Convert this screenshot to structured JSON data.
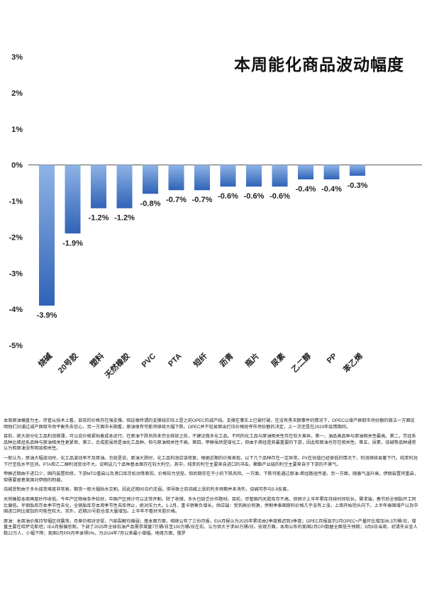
{
  "chart_data": {
    "type": "bar",
    "title": "本周能化商品波动幅度",
    "categories": [
      "烧碱",
      "20号胶",
      "塑料",
      "天然橡胶",
      "PVC",
      "PTA",
      "短纤",
      "沥青",
      "瓶片",
      "尿素",
      "乙二醇",
      "PP",
      "苯乙烯"
    ],
    "values": [
      -3.9,
      -1.9,
      -1.2,
      -1.2,
      -0.8,
      -0.7,
      -0.7,
      -0.6,
      -0.6,
      -0.6,
      -0.4,
      -0.4,
      -0.3
    ],
    "data_labels": [
      "-3.9%",
      "-1.9%",
      "-1.2%",
      "-1.2%",
      "-0.8%",
      "-0.7%",
      "-0.7%",
      "-0.6%",
      "-0.6%",
      "-0.6%",
      "-0.4%",
      "-0.4%",
      "-0.3%"
    ],
    "yticks": [
      3,
      2,
      1,
      0,
      -1,
      -2,
      -3,
      -4,
      -5
    ],
    "ytick_labels": [
      "3%",
      "2%",
      "1%",
      "0%",
      "-1%",
      "-2%",
      "-3%",
      "-4%",
      "-5%"
    ],
    "ylim": [
      -5,
      3
    ],
    "grid": false,
    "colors": {
      "bar_top": "#8fb3e6",
      "bar_bottom": "#2f63b7"
    }
  },
  "notes": [
    "本周原油横盘为主。尽管从技术上看，目前的价格存在强支撑。但这根所谓的支撑线实际上是之前OPEC的减产线。支撑在事实上已被打破，在没有黑天鹅事件的情况下，OPEC以增产换取市场份额的做法一方面说明他们对通过减产换取市场平衡失去信心，另一方面中长期看，原油很有可能将继续大幅下跌。OPEC并不轻易倒出打压价格抢夺市场份额的决定，上一次还是在2020年疫情期间。",
    "目前，绝大部分化工品利润微薄，可以说价格紧贴着成本运行。在原油下跌风险未完全释放之前，不建议做多化工品。不同的化工品与原油相关性存在较大差异。第一，油品类品种与原油相关性最高。第二，芳烃系品种比烯烃系品种与原油相关性更紧密。第三，合成胶虽然是油化工品种，但与原油相关性不高。第四，甲醇虽然是煤化工，但由于烯烃是其最重要的下游，因此和原油也存在相关性。第五，尿素，烧碱等品种通常认为和原油没有明显相关性。",
    "一般认为，原油大幅波动时，化工品波动率不及原油。也就是说，原油大跌时，化工品利润应该修复。根据近期的价格表现，以下几个品种存在一定异常。PX在估值已经很低的情况下，利润继续显著下行。纯苯利润下行至低水平区间。PTA和乙二醇利润变动不大。说明这几个品种基本面存在较大利空。其中，纯苯的利空主要来自进口的冲击。聚酯产业链的利空主要来自于下游的不景气。",
    "甲醇近期由于进口少，国内装置检修，下游MTO重启以及港口库存松动等原因，价格较为坚挺。但后期存在不小的下跌风险。一方面，下跌可能通过原油-烯烃路径传递。另一方面，随着气温升高，伊朗装置将重启，但需要留意美国对伊朗的制裁。",
    "烧碱受制由于多头接货难度非常高，期货一般大幅贴水交割。因此近期05合约走弱。但导致之前烧碱上涨的利多预期并未消失，烧碱可参与5-9反套。",
    "天然橡胶本周再度抄作收低。今年产区物候条件较好，中国产区预计可以正常开割。除了收储，多头已缺乏炒作题材。目前，尽管国内天胶库存不高，但预计上半年累库持续时间较长。需求端，春节后全钢胎开工同比偏低。半钢胎库存本季节性去化，全钢胎库存本周季节性去库停止，绝对压力大。1-2月，重卡销售负增长。供应端：受到高价刺激，停割季泰国原料价格几乎没有上涨，上周开始拐头向下。上半年泰国增产以及中国进口同比增加的可能性较大。另外，近期20号胶仓单大量增加。上半年不看好天胶价格。",
    "原油：本周油价维持窄幅区间震荡，月差仍相对坚挺，汽柴裂解均偏弱；基本面方面，相继公布了三份月报，EIA月报认为2025年累库由2季度推迟到3季度；OPEC月报显示2月OPEC+产量环比增加36.3万桶/日，增量主要在哈萨克斯坦；IEA月报偏悲观，下调了2025年全球石油产品需求增量7万桶/日至100万桶/日左右，认为供大于求60万桶/日。宏观方面，本周公布的美国2月CPI数据全面低于预期；3月8日当周，初请失业金人数22万人，小幅下降；美国2月PPI月率录得0%，为2024年7月以来最小增幅。地缘方面，俄罗"
  ]
}
